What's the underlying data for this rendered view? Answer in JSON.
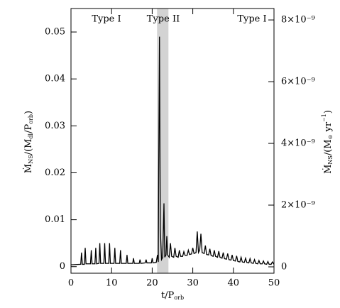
{
  "chart_data": {
    "type": "line",
    "x": [
      0,
      2.4,
      2.6,
      2.8,
      3.3,
      3.5,
      3.7,
      4.8,
      5,
      5.2,
      5.9,
      6.1,
      6.3,
      6.9,
      7.1,
      7.3,
      8.1,
      8.3,
      8.5,
      9.3,
      9.5,
      9.7,
      10.6,
      10.8,
      11,
      12,
      12.2,
      12.4,
      13.6,
      13.8,
      14,
      15.2,
      15.4,
      15.6,
      16.8,
      17,
      17.2,
      18.3,
      18.5,
      18.7,
      19.8,
      20,
      20.2,
      21,
      21.3,
      21.5,
      21.6,
      21.8,
      22,
      22.3,
      22.6,
      22.9,
      23.1,
      23.4,
      23.6,
      23.8,
      24.2,
      24.5,
      24.8,
      25.3,
      25.6,
      25.9,
      26.4,
      26.7,
      27,
      27.5,
      27.8,
      28.1,
      28.6,
      28.9,
      29.2,
      29.7,
      30,
      30.3,
      30.8,
      31.1,
      31.4,
      31.7,
      32,
      32.3,
      32.8,
      33.1,
      33.4,
      33.9,
      34.2,
      34.5,
      35,
      35.3,
      35.6,
      36.1,
      36.4,
      36.7,
      37.2,
      37.5,
      37.8,
      38.3,
      38.6,
      38.9,
      39.4,
      39.7,
      40,
      40.5,
      40.8,
      41.1,
      41.6,
      41.9,
      42.2,
      42.7,
      43,
      43.3,
      43.8,
      44.1,
      44.4,
      44.9,
      45.2,
      45.5,
      46,
      46.3,
      46.6,
      47.1,
      47.4,
      47.7,
      48.2,
      48.5,
      48.8,
      49.3,
      49.6,
      50
    ],
    "values": [
      0.0004,
      0.0005,
      0.003,
      0.0005,
      0.0005,
      0.004,
      0.0006,
      0.0006,
      0.0035,
      0.0006,
      0.0006,
      0.004,
      0.0006,
      0.0007,
      0.005,
      0.0007,
      0.0007,
      0.005,
      0.0007,
      0.0007,
      0.005,
      0.0007,
      0.0007,
      0.004,
      0.0007,
      0.0007,
      0.0035,
      0.0007,
      0.0007,
      0.0025,
      0.0007,
      0.0007,
      0.0018,
      0.0007,
      0.0007,
      0.0015,
      0.0007,
      0.0008,
      0.0015,
      0.0008,
      0.0008,
      0.0018,
      0.0008,
      0.0009,
      0.0025,
      0.001,
      0.02,
      0.049,
      0.008,
      0.0015,
      0.002,
      0.0135,
      0.002,
      0.0025,
      0.0065,
      0.0025,
      0.002,
      0.005,
      0.0022,
      0.002,
      0.004,
      0.0022,
      0.002,
      0.0035,
      0.0022,
      0.0022,
      0.0032,
      0.0024,
      0.0024,
      0.0035,
      0.0026,
      0.0027,
      0.004,
      0.0028,
      0.003,
      0.0075,
      0.003,
      0.0035,
      0.007,
      0.003,
      0.0028,
      0.0045,
      0.0026,
      0.0025,
      0.0038,
      0.0024,
      0.0022,
      0.0035,
      0.0022,
      0.002,
      0.0033,
      0.002,
      0.0018,
      0.003,
      0.0017,
      0.0016,
      0.0028,
      0.0015,
      0.0014,
      0.0025,
      0.0013,
      0.0012,
      0.0023,
      0.0011,
      0.001,
      0.002,
      0.001,
      0.0009,
      0.0018,
      0.0009,
      0.0008,
      0.0017,
      0.0008,
      0.0007,
      0.0015,
      0.0007,
      0.0006,
      0.0013,
      0.0006,
      0.0006,
      0.0012,
      0.0006,
      0.0005,
      0.0011,
      0.0005,
      0.0005,
      0.001,
      0.0005
    ],
    "color": "#000000",
    "shade": [
      21.2,
      24
    ],
    "shade_color": "#d3d3d3",
    "annotations": [
      "Type I",
      "Type II",
      "Type I"
    ],
    "xlabel": [
      "t/P",
      "orb"
    ],
    "ylabel": [
      "Ṁ",
      "NS",
      "/(M",
      "dl",
      "/P",
      "orb",
      ")"
    ],
    "y2label": [
      "Ṁ",
      "NS",
      "/(M",
      "⊙",
      " yr",
      "−1",
      ")"
    ],
    "xlim": [
      0,
      50
    ],
    "xticks": [
      0,
      10,
      20,
      30,
      40,
      50
    ],
    "ylim": [
      -0.0014,
      0.055
    ],
    "yticks": [
      0,
      0.01,
      0.02,
      0.03,
      0.04,
      0.05
    ],
    "y2lim": [
      -2.07e-10,
      8.37e-09
    ],
    "y2ticks": [
      0,
      {
        "value": 2e-09,
        "label": "2×10⁻⁹"
      },
      {
        "value": 4e-09,
        "label": "4×10⁻⁹"
      },
      {
        "value": 6e-09,
        "label": "6×10⁻⁹"
      },
      {
        "value": 8e-09,
        "label": "8×10⁻⁹"
      }
    ]
  }
}
